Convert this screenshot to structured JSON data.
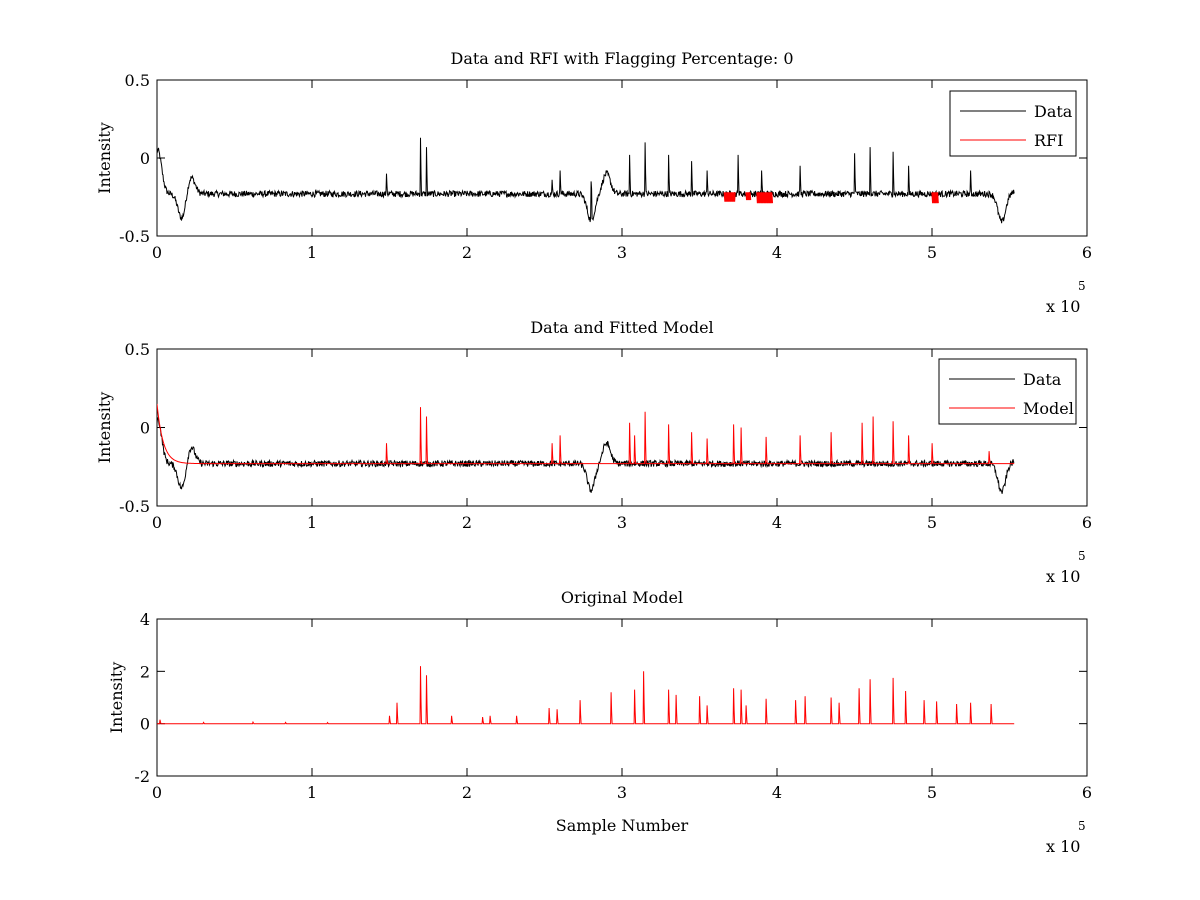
{
  "chart_data": [
    {
      "type": "line",
      "title": "Data and RFI with Flagging Percentage: 0",
      "xlabel": "",
      "ylabel": "Intensity",
      "xlim": [
        0,
        6
      ],
      "ylim": [
        -0.5,
        0.5
      ],
      "x_scale_label": "x 10",
      "x_scale_exponent": "5",
      "xticks": [
        0,
        1,
        2,
        3,
        4,
        5,
        6
      ],
      "xtick_labels": [
        "0",
        "1",
        "2",
        "3",
        "4",
        "5",
        "6"
      ],
      "yticks": [
        -0.5,
        0,
        0.5
      ],
      "ytick_labels": [
        "-0.5",
        "0",
        "0.5"
      ],
      "legend_position": "top-right",
      "series": [
        {
          "name": "Data",
          "color": "#000000",
          "x_range": [
            0,
            5.53
          ],
          "baseline": -0.23,
          "noise_amplitude": 0.02,
          "dips": [
            [
              0.005,
              0.05
            ],
            [
              0.16,
              -0.39
            ],
            [
              0.22,
              -0.12
            ],
            [
              2.8,
              -0.4
            ],
            [
              2.9,
              -0.1
            ],
            [
              5.45,
              -0.41
            ],
            [
              5.53,
              -0.22
            ]
          ],
          "spikes": [
            [
              1.48,
              -0.1
            ],
            [
              1.7,
              0.13
            ],
            [
              1.74,
              0.07
            ],
            [
              2.55,
              -0.14
            ],
            [
              2.6,
              -0.08
            ],
            [
              2.8,
              -0.15
            ],
            [
              3.05,
              0.02
            ],
            [
              3.15,
              0.1
            ],
            [
              3.3,
              0.02
            ],
            [
              3.45,
              -0.02
            ],
            [
              3.55,
              -0.08
            ],
            [
              3.75,
              0.02
            ],
            [
              3.9,
              -0.08
            ],
            [
              4.15,
              -0.05
            ],
            [
              4.5,
              0.03
            ],
            [
              4.6,
              0.07
            ],
            [
              4.75,
              0.04
            ],
            [
              4.85,
              -0.05
            ],
            [
              5.25,
              -0.08
            ]
          ]
        },
        {
          "name": "RFI",
          "color": "#ff0000",
          "segments": [
            [
              3.66,
              3.73,
              -0.22,
              -0.28
            ],
            [
              3.8,
              3.83,
              -0.22,
              -0.27
            ],
            [
              3.87,
              3.97,
              -0.22,
              -0.29
            ],
            [
              5.0,
              5.04,
              -0.22,
              -0.29
            ]
          ]
        }
      ]
    },
    {
      "type": "line",
      "title": "Data and Fitted Model",
      "xlabel": "",
      "ylabel": "Intensity",
      "xlim": [
        0,
        6
      ],
      "ylim": [
        -0.5,
        0.5
      ],
      "x_scale_label": "x 10",
      "x_scale_exponent": "5",
      "xticks": [
        0,
        1,
        2,
        3,
        4,
        5,
        6
      ],
      "xtick_labels": [
        "0",
        "1",
        "2",
        "3",
        "4",
        "5",
        "6"
      ],
      "yticks": [
        -0.5,
        0,
        0.5
      ],
      "ytick_labels": [
        "-0.5",
        "0",
        "0.5"
      ],
      "legend_position": "top-right",
      "series": [
        {
          "name": "Data",
          "color": "#000000",
          "x_range": [
            0,
            5.53
          ],
          "baseline": -0.23,
          "noise_amplitude": 0.02,
          "dips": [
            [
              0.005,
              0.05
            ],
            [
              0.16,
              -0.39
            ],
            [
              0.22,
              -0.12
            ],
            [
              2.8,
              -0.4
            ],
            [
              2.9,
              -0.1
            ],
            [
              5.45,
              -0.41
            ],
            [
              5.53,
              -0.22
            ]
          ]
        },
        {
          "name": "Model",
          "color": "#ff0000",
          "x_range": [
            0,
            5.53
          ],
          "baseline": -0.23,
          "start_value": 0.15,
          "spikes": [
            [
              1.48,
              -0.1
            ],
            [
              1.7,
              0.13
            ],
            [
              1.74,
              0.07
            ],
            [
              2.55,
              -0.1
            ],
            [
              2.6,
              -0.05
            ],
            [
              3.05,
              0.03
            ],
            [
              3.08,
              -0.05
            ],
            [
              3.15,
              0.1
            ],
            [
              3.3,
              0.02
            ],
            [
              3.45,
              -0.03
            ],
            [
              3.55,
              -0.07
            ],
            [
              3.72,
              0.02
            ],
            [
              3.77,
              0.0
            ],
            [
              3.93,
              -0.06
            ],
            [
              4.15,
              -0.05
            ],
            [
              4.35,
              -0.03
            ],
            [
              4.55,
              0.03
            ],
            [
              4.62,
              0.07
            ],
            [
              4.75,
              0.04
            ],
            [
              4.85,
              -0.05
            ],
            [
              5.0,
              -0.1
            ],
            [
              5.37,
              -0.15
            ]
          ]
        }
      ]
    },
    {
      "type": "line",
      "title": "Original Model",
      "xlabel": "Sample Number",
      "ylabel": "Intensity",
      "xlim": [
        0,
        6
      ],
      "ylim": [
        -2,
        4
      ],
      "x_scale_label": "x 10",
      "x_scale_exponent": "5",
      "xticks": [
        0,
        1,
        2,
        3,
        4,
        5,
        6
      ],
      "xtick_labels": [
        "0",
        "1",
        "2",
        "3",
        "4",
        "5",
        "6"
      ],
      "yticks": [
        -2,
        0,
        2,
        4
      ],
      "ytick_labels": [
        "-2",
        "0",
        "2",
        "4"
      ],
      "series": [
        {
          "color": "#ff0000",
          "x_range": [
            0,
            5.53
          ],
          "baseline": 0,
          "spikes": [
            [
              0.02,
              0.15
            ],
            [
              0.3,
              0.05
            ],
            [
              0.62,
              0.06
            ],
            [
              0.83,
              0.05
            ],
            [
              1.1,
              0.04
            ],
            [
              1.5,
              0.3
            ],
            [
              1.55,
              0.8
            ],
            [
              1.7,
              2.2
            ],
            [
              1.74,
              1.85
            ],
            [
              1.9,
              0.3
            ],
            [
              2.1,
              0.25
            ],
            [
              2.15,
              0.3
            ],
            [
              2.32,
              0.3
            ],
            [
              2.53,
              0.6
            ],
            [
              2.58,
              0.55
            ],
            [
              2.73,
              0.9
            ],
            [
              2.93,
              1.2
            ],
            [
              3.08,
              1.3
            ],
            [
              3.14,
              2.0
            ],
            [
              3.3,
              1.3
            ],
            [
              3.35,
              1.1
            ],
            [
              3.5,
              1.05
            ],
            [
              3.55,
              0.7
            ],
            [
              3.72,
              1.35
            ],
            [
              3.77,
              1.3
            ],
            [
              3.8,
              0.7
            ],
            [
              3.93,
              0.95
            ],
            [
              4.12,
              0.9
            ],
            [
              4.18,
              1.05
            ],
            [
              4.35,
              1.0
            ],
            [
              4.4,
              0.8
            ],
            [
              4.53,
              1.35
            ],
            [
              4.6,
              1.7
            ],
            [
              4.75,
              1.75
            ],
            [
              4.83,
              1.25
            ],
            [
              4.95,
              0.9
            ],
            [
              5.03,
              0.85
            ],
            [
              5.16,
              0.75
            ],
            [
              5.25,
              0.8
            ],
            [
              5.38,
              0.75
            ]
          ]
        }
      ]
    }
  ]
}
